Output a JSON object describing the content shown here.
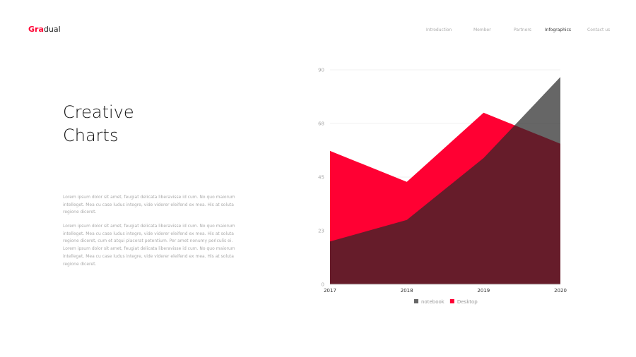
{
  "header": {
    "logo_accent": "Gra",
    "logo_rest": "dual",
    "nav": [
      {
        "label": "Introduction"
      },
      {
        "label": "Member"
      },
      {
        "label": "Partners"
      },
      {
        "label": "Infographics",
        "active": true
      },
      {
        "label": "Contact us"
      }
    ]
  },
  "main": {
    "title_line1": "Creative",
    "title_line2": "Charts",
    "paragraph1": "Lorem ipsum dolor sit amet, feugiat delicata liberavisse id cum. No quo maiorum intelleget. Mea cu case ludus integre, vide viderer eleifend ex mea. His at soluta regione diceret.",
    "paragraph2": "Lorem ipsum dolor sit amet, feugiat delicata liberavisse id cum. No quo maiorum intelleget. Mea cu case ludus integre, vide viderer eleifend ex mea. His at soluta regione diceret, cum et atqui placerat petentium. Per amet nonumy periculis ei. Lorem ipsum dolor sit amet, feugiat delicata liberavisse id cum. No quo maiorum intelleget. Mea cu case ludus integre, vide viderer eleifend ex mea. His at soluta regione diceret."
  },
  "chart_data": {
    "type": "area",
    "categories": [
      "2017",
      "2018",
      "2019",
      "2020"
    ],
    "ylim": [
      0,
      90
    ],
    "yticks": [
      "0",
      "23",
      "45",
      "68",
      "90"
    ],
    "grid": true,
    "legend": "bottom",
    "series": [
      {
        "name": "notebook",
        "values": [
          18,
          27,
          53,
          87
        ],
        "color": "#666666"
      },
      {
        "name": "Desktop",
        "values": [
          56,
          43,
          72,
          59
        ],
        "color": "#ff0033"
      }
    ]
  }
}
